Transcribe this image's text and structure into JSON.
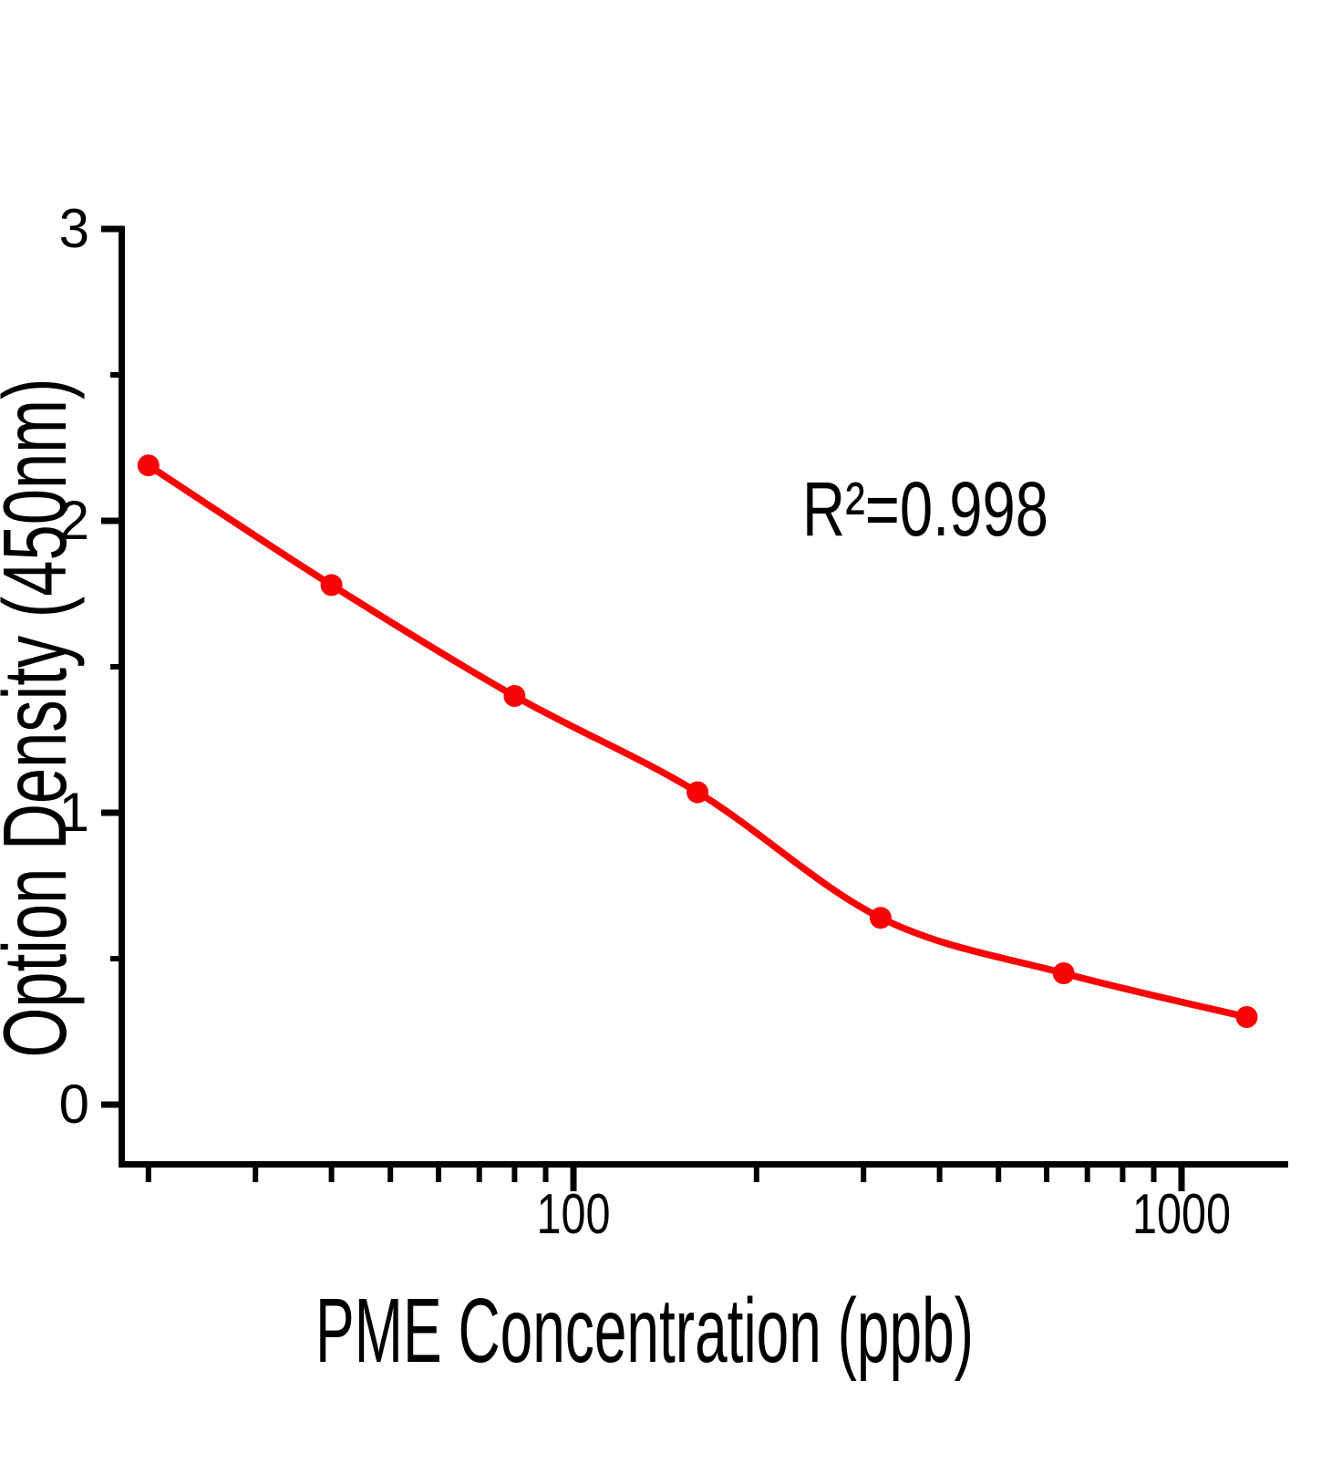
{
  "figure": {
    "background_color": "#ffffff",
    "annotation": {
      "text": "R²=0.998"
    },
    "x_axis": {
      "title": "PME Concentration (ppb)",
      "scale": "log",
      "major_ticks": [
        {
          "value": 100,
          "label": "100"
        },
        {
          "value": 1000,
          "label": "1000"
        }
      ],
      "minor_ticks": [
        20,
        30,
        40,
        50,
        60,
        70,
        80,
        90,
        200,
        300,
        400,
        500,
        600,
        700,
        800,
        900
      ],
      "range": [
        18,
        1500
      ]
    },
    "y_axis": {
      "title": "Option Density (450nm)",
      "scale": "linear",
      "major_ticks": [
        {
          "value": 3,
          "label": "3"
        },
        {
          "value": 2,
          "label": "2"
        },
        {
          "value": 1,
          "label": "1"
        },
        {
          "value": 0,
          "label": "0"
        }
      ],
      "minor_ticks": [
        2.5,
        1.5,
        0.5
      ],
      "range": [
        -0.2,
        3
      ]
    },
    "colors": {
      "series": "#F80407",
      "axis": "#000000",
      "text": "#000000"
    }
  },
  "chart_data": {
    "type": "scatter",
    "title": "",
    "xlabel": "PME Concentration (ppb)",
    "ylabel": "Option Density (450nm)",
    "x_scale": "log",
    "x": [
      20,
      40,
      80,
      160,
      320,
      640,
      1280
    ],
    "y": [
      2.19,
      1.78,
      1.4,
      1.07,
      0.64,
      0.45,
      0.3
    ],
    "fit_annotation": "R²=0.998",
    "fit_type": "smooth sigmoidal (4PL) curve through points",
    "xlim": [
      18,
      1500
    ],
    "ylim": [
      -0.2,
      3
    ],
    "grid": false,
    "legend": "none",
    "marker": "filled-circle",
    "marker_color": "#F80407",
    "line_color": "#F80407"
  }
}
